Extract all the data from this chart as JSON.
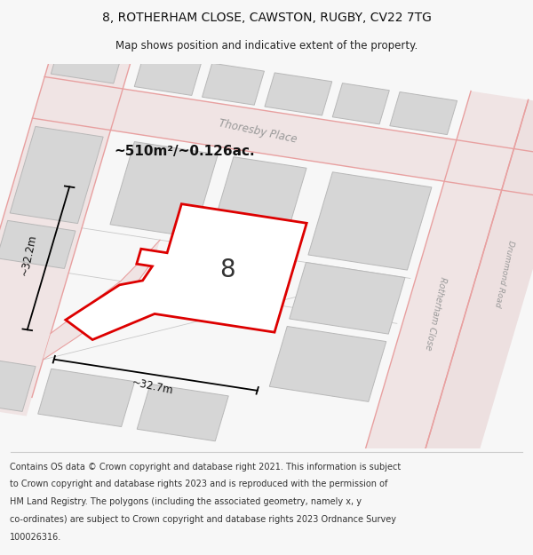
{
  "title_line1": "8, ROTHERHAM CLOSE, CAWSTON, RUGBY, CV22 7TG",
  "title_line2": "Map shows position and indicative extent of the property.",
  "area_label": "~510m²/~0.126ac.",
  "number_label": "8",
  "width_label": "~32.7m",
  "height_label": "~32.2m",
  "footer_lines": [
    "Contains OS data © Crown copyright and database right 2021. This information is subject",
    "to Crown copyright and database rights 2023 and is reproduced with the permission of",
    "HM Land Registry. The polygons (including the associated geometry, namely x, y",
    "co-ordinates) are subject to Crown copyright and database rights 2023 Ordnance Survey",
    "100026316."
  ],
  "bg_color": "#f7f7f7",
  "map_bg": "#ebebeb",
  "building_fill": "#d6d6d6",
  "building_edge": "#b8b8b8",
  "road_fill": "#f0e4e4",
  "road_line_color": "#e8a0a0",
  "plot_outline_color": "#dd0000",
  "plot_fill": "#ffffff",
  "street_label_thoresby": "Thoresby Place",
  "street_label_rotherham": "Rotherham Close",
  "street_label_drummond": "Drummond Road",
  "title_fontsize": 10,
  "subtitle_fontsize": 8.5,
  "footer_fontsize": 7.0,
  "map_rotation_deg": -12
}
